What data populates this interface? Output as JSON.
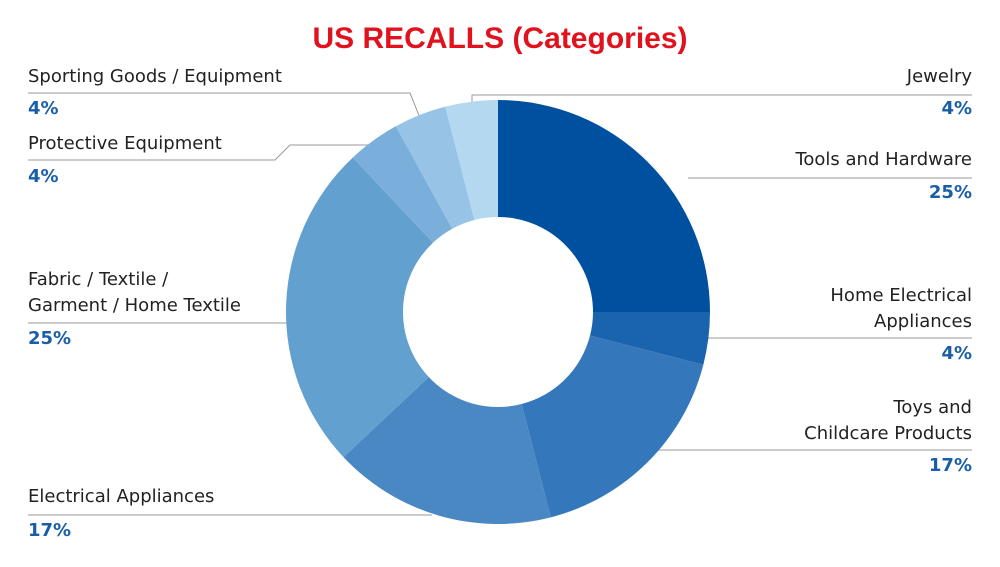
{
  "chart_data": {
    "type": "donut",
    "title": "US RECALLS (Categories)",
    "categories": [
      "Tools and Hardware",
      "Home Electrical\nAppliances",
      "Toys and\nChildcare Products",
      "Electrical Appliances",
      "Fabric / Textile /\nGarment / Home Textile",
      "Protective Equipment",
      "Sporting Goods / Equipment",
      "Jewelry"
    ],
    "values": [
      25,
      4,
      17,
      17,
      25,
      4,
      4,
      4
    ],
    "value_labels": [
      "25%",
      "4%",
      "17%",
      "17%",
      "25%",
      "4%",
      "4%",
      "4%"
    ],
    "colors": [
      "#0050a0",
      "#1a63ad",
      "#3477ba",
      "#4a88c4",
      "#62a0d0",
      "#7aafdb",
      "#97c4e6",
      "#b3d8f0"
    ]
  }
}
